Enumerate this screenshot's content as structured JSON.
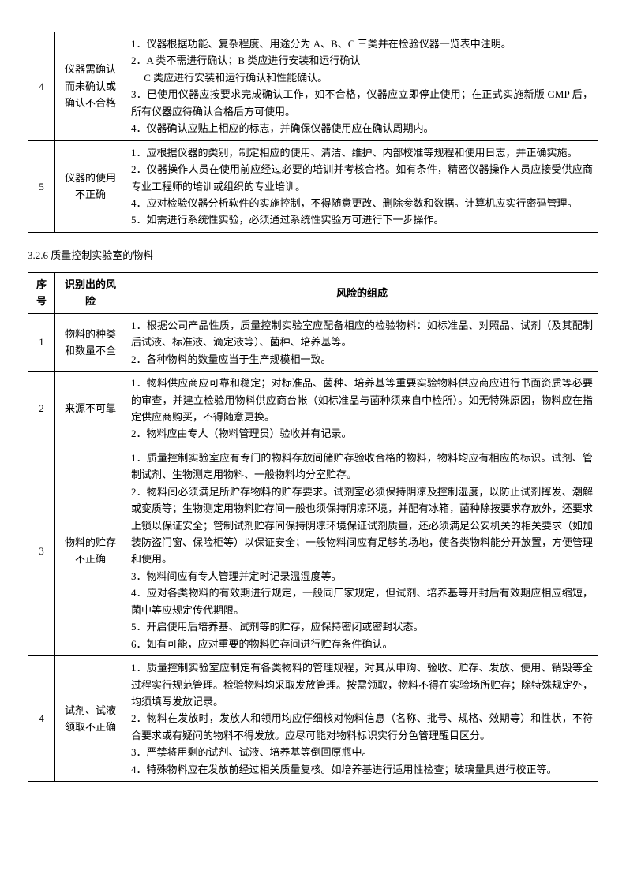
{
  "table1": {
    "rows": [
      {
        "num": "4",
        "risk": "仪器需确认而未确认或确认不合格",
        "comp": "1．仪器根据功能、复杂程度、用途分为 A、B、C 三类并在检验仪器一览表中注明。\n2．A 类不需进行确认；B 类应进行安装和运行确认\n　 C 类应进行安装和运行确认和性能确认。\n3．已使用仪器应按要求完成确认工作，如不合格，仪器应立即停止使用；在正式实施新版 GMP 后，所有仪器应待确认合格后方可使用。\n4．仪器确认应贴上相应的标志，并确保仪器使用应在确认周期内。"
      },
      {
        "num": "5",
        "risk": "仪器的使用不正确",
        "comp": "1．应根据仪器的类别，制定相应的使用、清洁、维护、内部校准等规程和使用日志，并正确实施。\n2．仪器操作人员在使用前应经过必要的培训并考核合格。如有条件，精密仪器操作人员应接受供应商专业工程师的培训或组织的专业培训。\n4．应对检验仪器分析软件的实施控制，不得随意更改、删除参数和数据。计算机应实行密码管理。\n5．如需进行系统性实验，必须通过系统性实验方可进行下一步操作。"
      }
    ]
  },
  "sectionTitle": "3.2.6 质量控制实验室的物料",
  "table2": {
    "headers": {
      "num": "序号",
      "risk": "识别出的风险",
      "comp": "风险的组成"
    },
    "rows": [
      {
        "num": "1",
        "risk": "物料的种类和数量不全",
        "comp": "1．根据公司产品性质，质量控制实验室应配备相应的检验物料：如标准品、对照品、试剂（及其配制后试液、标准液、滴定液等）、菌种、培养基等。\n2．各种物料的数量应当于生产规模相一致。"
      },
      {
        "num": "2",
        "risk": "来源不可靠",
        "comp": "1．物料供应商应可靠和稳定；对标准品、菌种、培养基等重要实验物料供应商应进行书面资质等必要的审查，并建立检验用物料供应商台帐（如标准品与菌种须来自中检所）。如无特殊原因，物料应在指定供应商购买，不得随意更换。\n2．物料应由专人（物料管理员）验收并有记录。"
      },
      {
        "num": "3",
        "risk": "物料的贮存不正确",
        "comp": "1．质量控制实验室应有专门的物料存放间储贮存验收合格的物料，物料均应有相应的标识。试剂、管制试剂、生物测定用物料、一般物料均分室贮存。\n2．物料间必须满足所贮存物料的贮存要求。试剂室必须保持阴凉及控制湿度，以防止试剂挥发、潮解或变质等；生物测定用物料贮存间一般也须保持阴凉环境，并配有冰箱，菌种除按要求存放外，还要求上锁以保证安全；管制试剂贮存间保持阴凉环境保证试剂质量，还必须满足公安机关的相关要求（如加装防盗门窗、保险柜等）以保证安全；一般物料间应有足够的场地，使各类物料能分开放置，方便管理和使用。\n3．物料间应有专人管理并定时记录温湿度等。\n4．应对各类物料的有效期进行规定，一般同厂家规定，但试剂、培养基等开封后有效期应相应缩短，菌中等应规定传代期限。\n5．开启使用后培养基、试剂等的贮存，应保持密闭或密封状态。\n6．如有可能，应对重要的物料贮存间进行贮存条件确认。"
      },
      {
        "num": "4",
        "risk": "试剂、试液领取不正确",
        "comp": "1．质量控制实验室应制定有各类物料的管理规程，对其从申购、验收、贮存、发放、使用、销毁等全过程实行规范管理。检验物料均采取发放管理。按需领取，物料不得在实验场所贮存；除特殊规定外，均须填写发放记录。\n2．物料在发放时，发放人和领用均应仔细核对物料信息（名称、批号、规格、效期等）和性状，不符合要求或有疑问的物料不得发放。应尽可能对物料标识实行分色管理醒目区分。\n3．严禁将用剩的试剂、试液、培养基等倒回原瓶中。\n4．特殊物料应在发放前经过相关质量复核。如培养基进行适用性检查；玻璃量具进行校正等。"
      }
    ]
  }
}
